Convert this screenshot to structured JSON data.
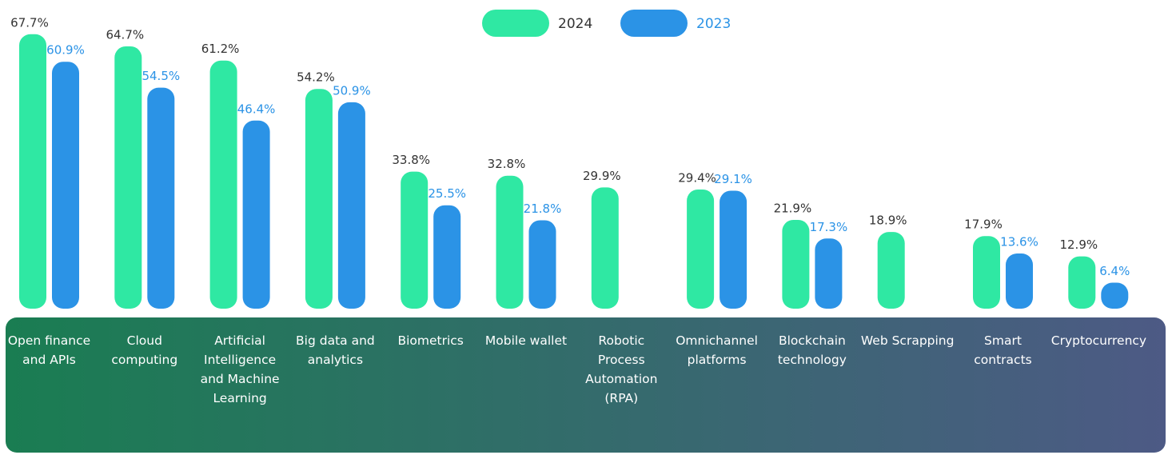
{
  "chart_data": {
    "type": "bar",
    "categories": [
      "Open finance and APIs",
      "Cloud computing",
      "Artificial Intelligence and Machine Learning",
      "Big data and analytics",
      "Biometrics",
      "Mobile wallet",
      "Robotic Process Automation (RPA)",
      "Omnichannel platforms",
      "Blockchain technology",
      "Web Scrapping",
      "Smart contracts",
      "Cryptocurrency"
    ],
    "series": [
      {
        "name": "2024",
        "color": "#2fe8a3",
        "label_color": "#333333",
        "values": [
          67.7,
          64.7,
          61.2,
          54.2,
          33.8,
          32.8,
          29.9,
          29.4,
          21.9,
          18.9,
          17.9,
          12.9
        ],
        "value_labels": [
          "67.7%",
          "64.7%",
          "61.2%",
          "54.2%",
          "33.8%",
          "32.8%",
          "29.9%",
          "29.4%",
          "21.9%",
          "18.9%",
          "17.9%",
          "12.9%"
        ]
      },
      {
        "name": "2023",
        "color": "#2b93e6",
        "label_color": "#2b93e6",
        "values": [
          60.9,
          54.5,
          46.4,
          50.9,
          25.5,
          21.8,
          null,
          29.1,
          17.3,
          null,
          13.6,
          6.4
        ],
        "value_labels": [
          "60.9%",
          "54.5%",
          "46.4%",
          "50.9%",
          "25.5%",
          "21.8%",
          null,
          "29.1%",
          "17.3%",
          null,
          "13.6%",
          "6.4%"
        ]
      }
    ]
  }
}
